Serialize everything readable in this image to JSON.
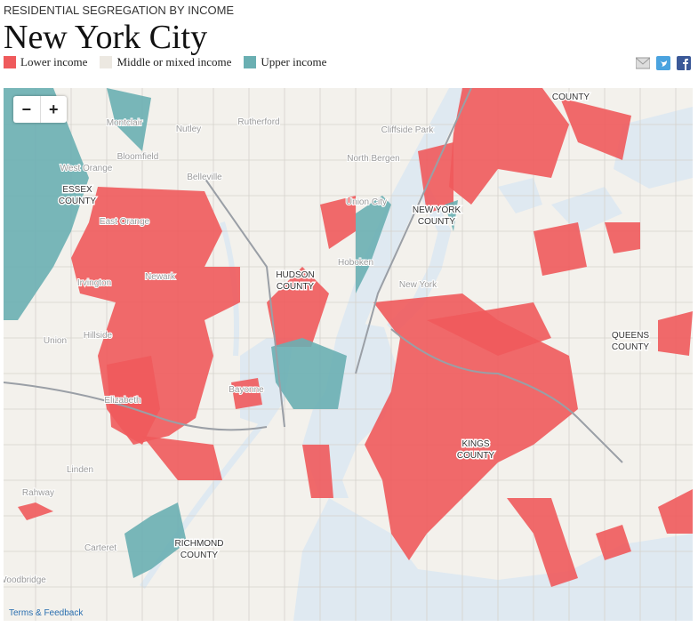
{
  "header": {
    "kicker": "RESIDENTIAL SEGREGATION BY INCOME",
    "title": "New York City"
  },
  "legend": [
    {
      "label": "Lower income",
      "color": "#ef5a5c"
    },
    {
      "label": "Middle or mixed income",
      "color": "#ece8e1"
    },
    {
      "label": "Upper income",
      "color": "#6aafb2"
    }
  ],
  "zoom": {
    "out": "−",
    "in": "+"
  },
  "map": {
    "county_labels": [
      {
        "lines": [
          "COUNTY"
        ]
      },
      {
        "lines": [
          "ESSEX",
          "COUNTY"
        ]
      },
      {
        "lines": [
          "NEW YORK",
          "COUNTY"
        ]
      },
      {
        "lines": [
          "HUDSON",
          "COUNTY"
        ]
      },
      {
        "lines": [
          "QUEENS",
          "COUNTY"
        ]
      },
      {
        "lines": [
          "KINGS",
          "COUNTY"
        ]
      },
      {
        "lines": [
          "RICHMOND",
          "COUNTY"
        ]
      }
    ],
    "place_labels": [
      "Montclair",
      "Nutley",
      "Rutherford",
      "Bloomfield",
      "West Orange",
      "Belleville",
      "Cliffside Park",
      "North Bergen",
      "Union City",
      "East Orange",
      "Newark",
      "Irvington",
      "Union",
      "Hillside",
      "Elizabeth",
      "Bayonne",
      "Linden",
      "Rahway",
      "Carteret",
      "Woodbridge",
      "Hoboken",
      "New York"
    ]
  },
  "footer": {
    "link": "Terms & Feedback"
  }
}
